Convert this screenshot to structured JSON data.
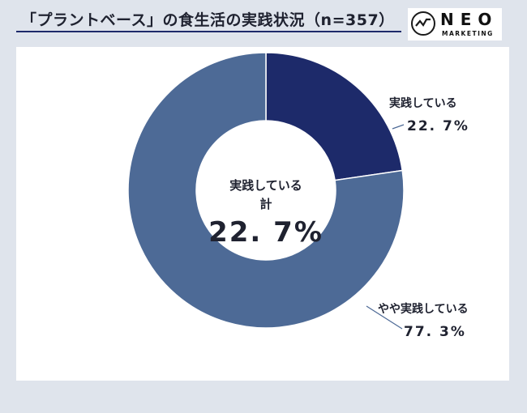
{
  "title": "「プラントベース」の食生活の実践状況（n=357）",
  "logo": {
    "word": "NEO",
    "sub": "MARKETING"
  },
  "center": {
    "label_line1": "実践している",
    "label_line2": "計",
    "value": "22. 7%"
  },
  "colors": {
    "dark": "#1d2a6a",
    "mid": "#4d6a96",
    "bg": "#dfe4ec"
  },
  "chart_data": {
    "type": "pie",
    "donut": true,
    "categories": [
      "実践している",
      "やや実践している"
    ],
    "values": [
      22.7,
      77.3
    ],
    "value_labels": [
      "22. 7%",
      "77. 3%"
    ],
    "colors": [
      "#1d2a6a",
      "#4d6a96"
    ],
    "title": "「プラントベース」の食生活の実践状況（n=357）"
  }
}
